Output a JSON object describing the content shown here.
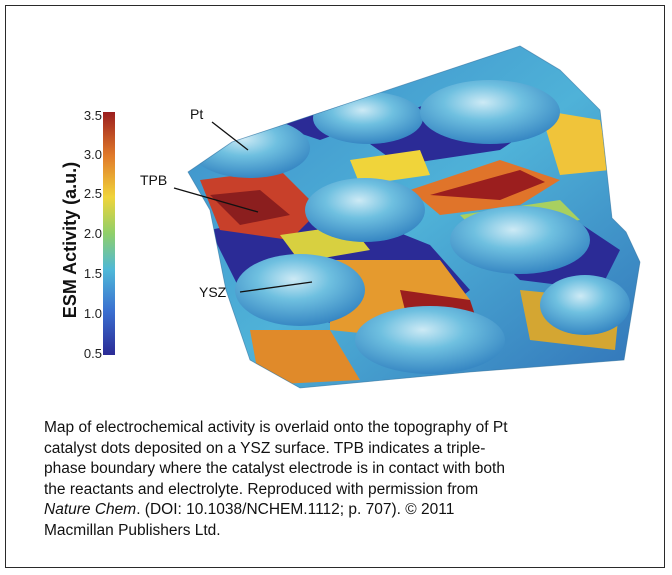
{
  "colorbar": {
    "title": "ESM Activity (a.u.)",
    "ticks": [
      "3.5",
      "3.0",
      "2.5",
      "2.0",
      "1.5",
      "1.0",
      "0.5"
    ],
    "min": 0.5,
    "max": 3.5,
    "colors": [
      "#2b2b96",
      "#3a7fd0",
      "#4fb8d8",
      "#9fcf6a",
      "#f0d43a",
      "#e07a2a",
      "#9b1e1e"
    ]
  },
  "labels": {
    "pt": "Pt",
    "tpb": "TPB",
    "ysz": "YSZ"
  },
  "caption": {
    "line1": "Map of electrochemical activity is overlaid onto the topography of Pt",
    "line2": "catalyst dots deposited on a YSZ surface. TPB indicates a triple-",
    "line3": "phase boundary where the catalyst electrode is in contact with both",
    "line4": "the reactants and electrolyte. Reproduced with permission from",
    "journal": "Nature Chem",
    "line5_rest": ". (DOI: 10.1038/NCHEM.1112; p. 707). © 2011",
    "line6": "Macmillan Publishers Ltd."
  }
}
